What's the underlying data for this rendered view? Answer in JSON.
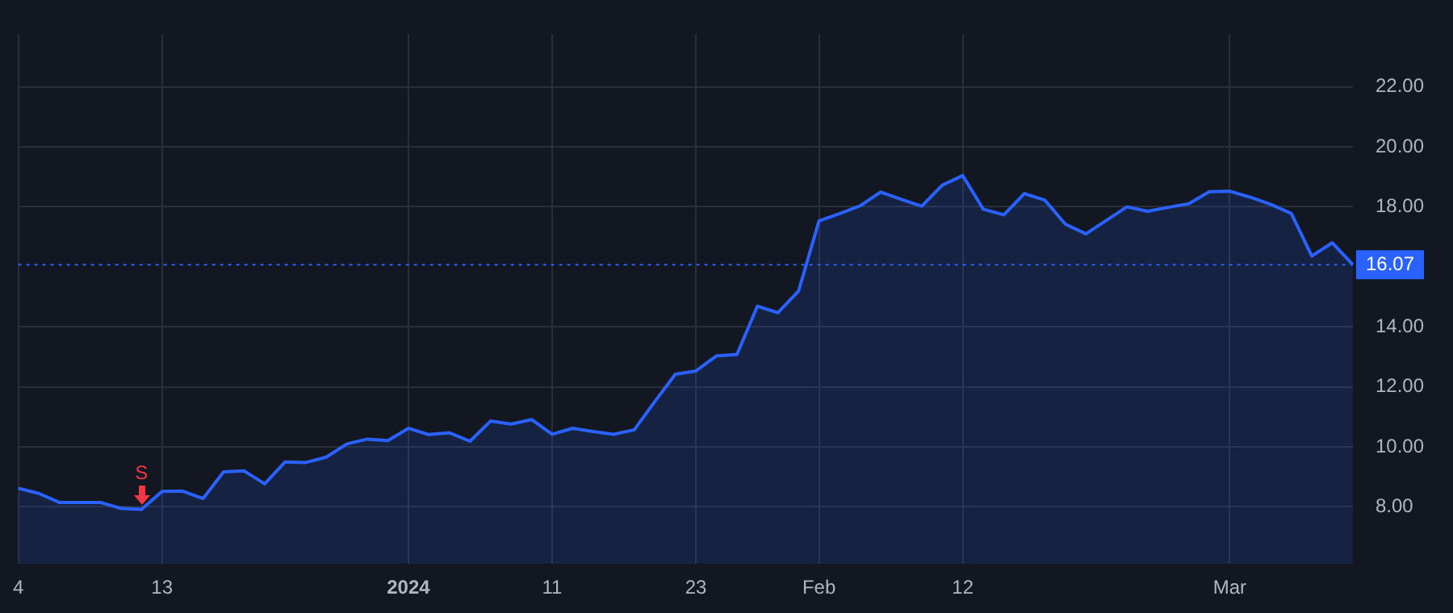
{
  "chart_data": {
    "type": "area",
    "categories": [
      "4",
      null,
      null,
      null,
      null,
      null,
      null,
      "13",
      null,
      null,
      null,
      null,
      null,
      null,
      null,
      null,
      null,
      null,
      null,
      "2024",
      null,
      null,
      null,
      null,
      null,
      null,
      "11",
      null,
      null,
      null,
      null,
      null,
      null,
      "23",
      null,
      null,
      null,
      null,
      null,
      "Feb",
      null,
      null,
      null,
      null,
      null,
      null,
      "12",
      null,
      null,
      null,
      null,
      null,
      null,
      null,
      null,
      null,
      null,
      null,
      null,
      "Mar",
      null,
      null,
      null,
      null,
      null,
      null
    ],
    "series": [
      {
        "color": "#2962ff",
        "values": [
          8.62,
          8.45,
          8.15,
          8.15,
          8.15,
          7.95,
          7.92,
          8.52,
          8.53,
          8.28,
          9.17,
          9.2,
          8.77,
          9.5,
          9.48,
          9.66,
          10.1,
          10.26,
          10.21,
          10.62,
          10.41,
          10.47,
          10.19,
          10.86,
          10.76,
          10.91,
          10.42,
          10.62,
          10.51,
          10.42,
          10.57,
          11.51,
          12.42,
          12.53,
          13.03,
          13.08,
          14.69,
          14.47,
          15.19,
          17.53,
          17.77,
          18.03,
          18.49,
          18.25,
          18.02,
          18.72,
          19.04,
          17.92,
          17.73,
          18.44,
          18.22,
          17.42,
          17.1,
          17.55,
          18.0,
          17.85,
          17.98,
          18.1,
          18.5,
          18.52,
          18.32,
          18.08,
          17.78,
          16.36,
          16.8,
          16.07
        ]
      }
    ],
    "ylim": [
      6.1,
      23.75
    ],
    "yticks": [
      {
        "value": 8,
        "label": "8.00"
      },
      {
        "value": 10,
        "label": "10.00"
      },
      {
        "value": 12,
        "label": "12.00"
      },
      {
        "value": 14,
        "label": "14.00"
      },
      {
        "value": 18,
        "label": "18.00"
      },
      {
        "value": 20,
        "label": "20.00"
      },
      {
        "value": 22,
        "label": "22.00"
      }
    ],
    "grid": true,
    "ref_lines": [
      {
        "axis": "y",
        "value": 16.07,
        "label": "16.07",
        "color": "#2962ff",
        "line_style": "dotted"
      }
    ],
    "annotations": [
      {
        "text": "S",
        "y": 7.92
      }
    ]
  }
}
